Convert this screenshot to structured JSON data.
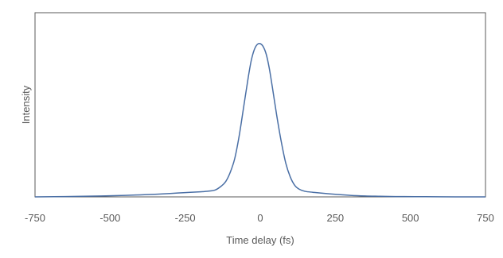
{
  "chart_data": {
    "type": "line",
    "title": "",
    "xlabel": "Time delay (fs)",
    "ylabel": "Intensity",
    "xlim": [
      -750,
      750
    ],
    "ylim": [
      0,
      1
    ],
    "x_ticks": [
      "-750",
      "-500",
      "-250",
      "0",
      "250",
      "500",
      "750"
    ],
    "y_ticks": [],
    "grid": false,
    "legend": "none",
    "series": [
      {
        "color": "#4a6fa5",
        "x": [
          -750,
          -650,
          -550,
          -450,
          -400,
          -350,
          -300,
          -250,
          -200,
          -175,
          -150,
          -130,
          -115,
          -100,
          -85,
          -70,
          -55,
          -40,
          -30,
          -20,
          -10,
          0,
          10,
          20,
          30,
          40,
          55,
          70,
          85,
          100,
          115,
          130,
          150,
          175,
          200,
          250,
          300,
          350,
          400,
          450,
          550,
          650,
          750
        ],
        "y": [
          0.0,
          0.002,
          0.005,
          0.01,
          0.013,
          0.017,
          0.022,
          0.028,
          0.033,
          0.037,
          0.045,
          0.07,
          0.1,
          0.16,
          0.25,
          0.4,
          0.59,
          0.78,
          0.89,
          0.96,
          0.995,
          1.0,
          0.98,
          0.93,
          0.84,
          0.72,
          0.53,
          0.36,
          0.22,
          0.13,
          0.075,
          0.05,
          0.036,
          0.03,
          0.025,
          0.017,
          0.01,
          0.006,
          0.004,
          0.002,
          0.001,
          0.0,
          0.0
        ]
      }
    ]
  },
  "colors": {
    "axis": "#595959",
    "frame": "#595959",
    "line": "#4a6fa5",
    "text": "#595959"
  }
}
